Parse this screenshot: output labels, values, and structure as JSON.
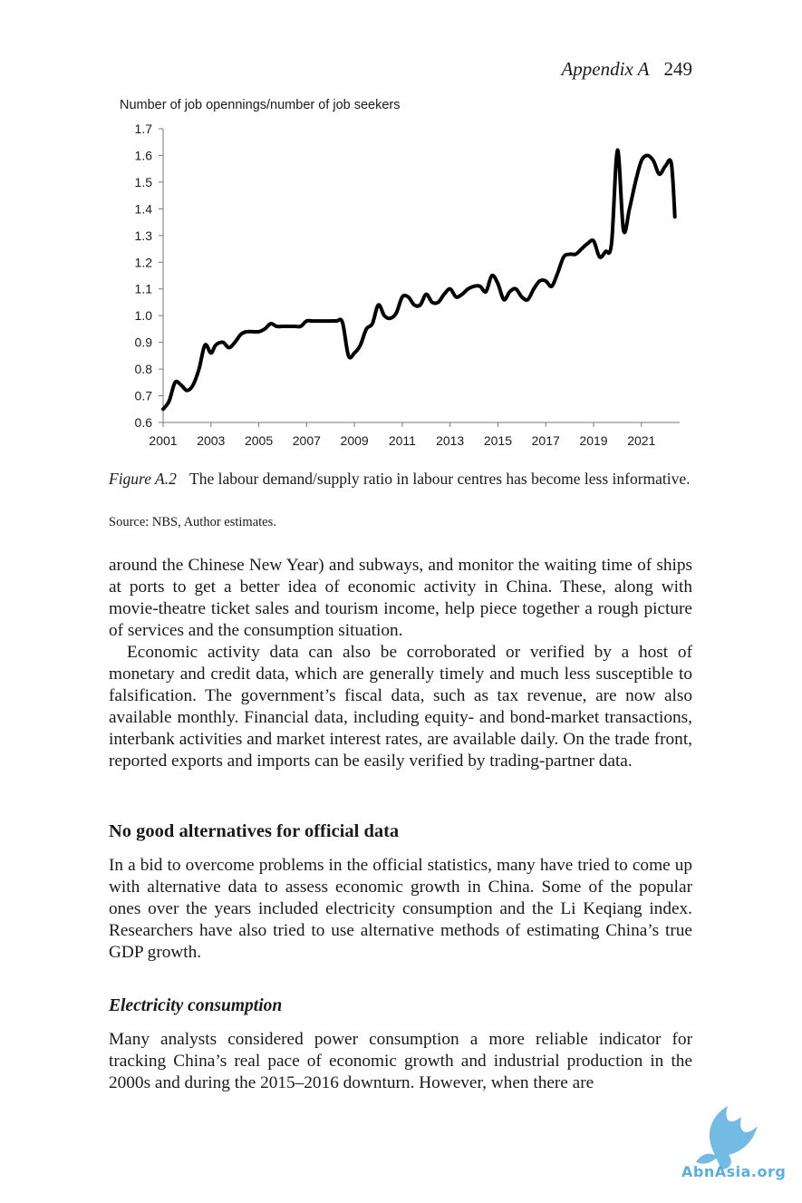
{
  "header": {
    "section": "Appendix A",
    "page_number": "249"
  },
  "chart_data": {
    "type": "line",
    "title": "",
    "ylabel": "Number of job opennings/number of job seekers",
    "xlabel": "",
    "ylim": [
      0.6,
      1.7
    ],
    "xlim": [
      2001,
      2022.6
    ],
    "yticks": [
      "0.6",
      "0.7",
      "0.8",
      "0.9",
      "1.0",
      "1.1",
      "1.2",
      "1.3",
      "1.4",
      "1.5",
      "1.6",
      "1.7"
    ],
    "xticks": [
      "2001",
      "2003",
      "2005",
      "2007",
      "2009",
      "2011",
      "2013",
      "2015",
      "2017",
      "2019",
      "2021"
    ],
    "grid": false,
    "legend": "none",
    "line_color": "#000000",
    "series": [
      {
        "x": [
          2001.0,
          2001.25,
          2001.5,
          2001.75,
          2002.0,
          2002.25,
          2002.5,
          2002.75,
          2003.0,
          2003.2,
          2003.5,
          2003.75,
          2004.0,
          2004.25,
          2004.5,
          2004.75,
          2005.0,
          2005.25,
          2005.5,
          2005.75,
          2006.0,
          2006.25,
          2006.5,
          2006.75,
          2007.0,
          2007.25,
          2007.5,
          2007.75,
          2008.0,
          2008.25,
          2008.5,
          2008.75,
          2009.0,
          2009.25,
          2009.5,
          2009.75,
          2010.0,
          2010.25,
          2010.5,
          2010.75,
          2011.0,
          2011.25,
          2011.5,
          2011.75,
          2012.0,
          2012.25,
          2012.5,
          2012.75,
          2013.0,
          2013.25,
          2013.5,
          2013.75,
          2014.0,
          2014.25,
          2014.5,
          2014.75,
          2015.0,
          2015.25,
          2015.5,
          2015.75,
          2016.0,
          2016.25,
          2016.5,
          2016.75,
          2017.0,
          2017.25,
          2017.5,
          2017.75,
          2018.0,
          2018.25,
          2018.5,
          2018.75,
          2019.0,
          2019.25,
          2019.5,
          2019.75,
          2020.0,
          2020.25,
          2020.5,
          2020.75,
          2021.0,
          2021.25,
          2021.5,
          2021.75,
          2022.0,
          2022.25,
          2022.4
        ],
        "y": [
          0.65,
          0.68,
          0.75,
          0.74,
          0.72,
          0.74,
          0.8,
          0.89,
          0.86,
          0.89,
          0.9,
          0.88,
          0.9,
          0.93,
          0.94,
          0.94,
          0.94,
          0.95,
          0.97,
          0.96,
          0.96,
          0.96,
          0.96,
          0.96,
          0.98,
          0.98,
          0.98,
          0.98,
          0.98,
          0.98,
          0.975,
          0.85,
          0.86,
          0.89,
          0.95,
          0.97,
          1.04,
          1.0,
          0.99,
          1.01,
          1.07,
          1.07,
          1.04,
          1.04,
          1.08,
          1.05,
          1.05,
          1.08,
          1.1,
          1.07,
          1.08,
          1.1,
          1.11,
          1.11,
          1.09,
          1.15,
          1.12,
          1.06,
          1.09,
          1.1,
          1.07,
          1.06,
          1.1,
          1.13,
          1.13,
          1.11,
          1.16,
          1.22,
          1.23,
          1.23,
          1.25,
          1.27,
          1.28,
          1.22,
          1.24,
          1.27,
          1.62,
          1.32,
          1.4,
          1.5,
          1.58,
          1.6,
          1.58,
          1.53,
          1.56,
          1.57,
          1.37
        ]
      }
    ]
  },
  "figure": {
    "label": "Figure A.2",
    "caption": "The labour demand/supply ratio in labour centres has become less informative.",
    "source": "Source: NBS, Author estimates."
  },
  "body": {
    "para1": "around the Chinese New Year) and subways, and monitor the waiting time of ships at ports to get a better idea of economic activity in China. These, along with movie-theatre ticket sales and tourism income, help piece together a rough picture of services and the consumption situation.",
    "para2": "Economic activity data can also be corroborated or verified by a host of monetary and credit data, which are generally timely and much less suscep­tible to falsification. The government’s fiscal data, such as tax revenue, are now also available monthly. Financial data, including equity- and bond-mar­ket transactions, interbank activities and market interest rates, are available daily. On the trade front, reported exports and imports can be easily verified by trading-partner data.",
    "heading1": "No good alternatives for official data",
    "para3": "In a bid to overcome problems in the official statistics, many have tried to come up with alternative data to assess economic growth in China. Some of the popular ones over the years included electricity consumption and the Li Keqiang index. Researchers have also tried to use alternative methods of estimating China’s true GDP growth.",
    "heading2": "Electricity consumption",
    "para4": "Many analysts considered power consumption a more reliable indicator for tracking China’s real pace of economic growth and industrial production in the 2000s and during the 2015–2016 downturn. However, when there are"
  },
  "watermark": {
    "text": "AbnAsia.org",
    "color": "#5aaee0"
  }
}
